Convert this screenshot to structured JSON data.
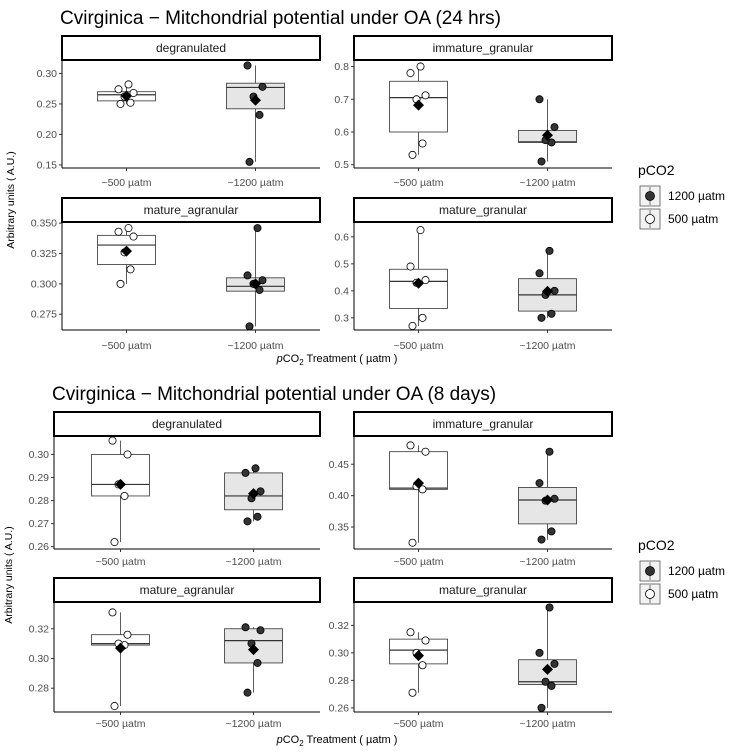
{
  "legend": {
    "title": "pCO2",
    "entries": [
      {
        "label": "1200 µatm",
        "fill": "#333333"
      },
      {
        "label": "500 µatm",
        "fill": "#ffffff"
      }
    ],
    "placement": "right"
  },
  "colors": {
    "box_fill_500": "#ffffff",
    "box_fill_1200": "#e6e6e6",
    "point_500": "#ffffff",
    "point_1200": "#333333",
    "mean_marker": "#000000",
    "strip_fill": "#ffffff"
  },
  "chart_data": [
    {
      "type": "box",
      "title": "Cvirginica − Mitchondrial potential under OA (24 hrs)",
      "ylabel": "Arbitrary units ( A.U.)",
      "xlabel_italic": "p",
      "xlabel_main": "CO",
      "xlabel_sub": "2",
      "xlabel_rest": " Treatment ( µatm )",
      "categories": [
        "~500 µatm",
        "~1200 µatm"
      ],
      "panels": [
        {
          "name": "degranulated",
          "ylim": [
            0.145,
            0.322
          ],
          "yticks": [
            0.15,
            0.2,
            0.25,
            0.3
          ],
          "ytick_labels": [
            "0.15",
            "0.20",
            "0.25",
            "0.30"
          ],
          "groups": [
            {
              "q1": 0.255,
              "median": 0.265,
              "q3": 0.27,
              "lo": 0.25,
              "hi": 0.282,
              "mean": 0.263,
              "points": [
                0.25,
                0.252,
                0.262,
                0.268,
                0.274,
                0.282
              ]
            },
            {
              "q1": 0.242,
              "median": 0.277,
              "q3": 0.284,
              "lo": 0.155,
              "hi": 0.313,
              "mean": 0.256,
              "points": [
                0.155,
                0.232,
                0.262,
                0.278,
                0.313
              ]
            }
          ]
        },
        {
          "name": "immature_granular",
          "ylim": [
            0.49,
            0.82
          ],
          "yticks": [
            0.5,
            0.6,
            0.7,
            0.8
          ],
          "ytick_labels": [
            "0.5",
            "0.6",
            "0.7",
            "0.8"
          ],
          "groups": [
            {
              "q1": 0.6,
              "median": 0.705,
              "q3": 0.755,
              "lo": 0.53,
              "hi": 0.8,
              "mean": 0.682,
              "points": [
                0.53,
                0.565,
                0.7,
                0.712,
                0.78,
                0.8
              ]
            },
            {
              "q1": 0.568,
              "median": 0.57,
              "q3": 0.605,
              "lo": 0.51,
              "hi": 0.7,
              "mean": 0.59,
              "points": [
                0.51,
                0.568,
                0.575,
                0.615,
                0.7
              ]
            }
          ]
        },
        {
          "name": "mature_agranular",
          "ylim": [
            0.262,
            0.351
          ],
          "yticks": [
            0.275,
            0.3,
            0.325,
            0.35
          ],
          "ytick_labels": [
            "0.275",
            "0.300",
            "0.325",
            "0.350"
          ],
          "groups": [
            {
              "q1": 0.316,
              "median": 0.332,
              "q3": 0.34,
              "lo": 0.3,
              "hi": 0.346,
              "mean": 0.327,
              "points": [
                0.3,
                0.312,
                0.326,
                0.339,
                0.343,
                0.346
              ]
            },
            {
              "q1": 0.294,
              "median": 0.298,
              "q3": 0.305,
              "lo": 0.265,
              "hi": 0.346,
              "mean": 0.3,
              "points": [
                0.265,
                0.295,
                0.3,
                0.303,
                0.307,
                0.346
              ]
            }
          ]
        },
        {
          "name": "mature_granular",
          "ylim": [
            0.255,
            0.655
          ],
          "yticks": [
            0.3,
            0.4,
            0.5,
            0.6
          ],
          "ytick_labels": [
            "0.3",
            "0.4",
            "0.5",
            "0.6"
          ],
          "groups": [
            {
              "q1": 0.335,
              "median": 0.435,
              "q3": 0.48,
              "lo": 0.27,
              "hi": 0.625,
              "mean": 0.428,
              "points": [
                0.27,
                0.3,
                0.43,
                0.44,
                0.49,
                0.625
              ]
            },
            {
              "q1": 0.325,
              "median": 0.385,
              "q3": 0.445,
              "lo": 0.3,
              "hi": 0.548,
              "mean": 0.398,
              "points": [
                0.3,
                0.315,
                0.385,
                0.4,
                0.465,
                0.548
              ]
            }
          ]
        }
      ]
    },
    {
      "type": "box",
      "title": "Cvirginica − Mitchondrial potential under OA (8 days)",
      "ylabel": "Arbitrary units ( A.U.)",
      "xlabel_italic": "p",
      "xlabel_main": "CO",
      "xlabel_sub": "2",
      "xlabel_rest": " Treatment ( µatm )",
      "categories": [
        "~500 µatm",
        "~1200 µatm"
      ],
      "panels": [
        {
          "name": "degranulated",
          "ylim": [
            0.259,
            0.308
          ],
          "yticks": [
            0.26,
            0.27,
            0.28,
            0.29,
            0.3
          ],
          "ytick_labels": [
            "0.26",
            "0.27",
            "0.28",
            "0.29",
            "0.30"
          ],
          "groups": [
            {
              "q1": 0.282,
              "median": 0.287,
              "q3": 0.3,
              "lo": 0.262,
              "hi": 0.306,
              "mean": 0.287,
              "points": [
                0.262,
                0.282,
                0.287,
                0.3,
                0.306
              ]
            },
            {
              "q1": 0.276,
              "median": 0.282,
              "q3": 0.292,
              "lo": 0.271,
              "hi": 0.294,
              "mean": 0.283,
              "points": [
                0.271,
                0.273,
                0.281,
                0.284,
                0.292,
                0.294
              ]
            }
          ]
        },
        {
          "name": "immature_granular",
          "ylim": [
            0.315,
            0.495
          ],
          "yticks": [
            0.35,
            0.4,
            0.45
          ],
          "ytick_labels": [
            "0.35",
            "0.40",
            "0.45"
          ],
          "groups": [
            {
              "q1": 0.41,
              "median": 0.412,
              "q3": 0.47,
              "lo": 0.325,
              "hi": 0.48,
              "mean": 0.42,
              "points": [
                0.325,
                0.41,
                0.415,
                0.47,
                0.48
              ]
            },
            {
              "q1": 0.355,
              "median": 0.393,
              "q3": 0.413,
              "lo": 0.33,
              "hi": 0.47,
              "mean": 0.393,
              "points": [
                0.33,
                0.343,
                0.392,
                0.395,
                0.42,
                0.47
              ]
            }
          ]
        },
        {
          "name": "mature_agranular",
          "ylim": [
            0.264,
            0.338
          ],
          "yticks": [
            0.28,
            0.3,
            0.32
          ],
          "ytick_labels": [
            "0.28",
            "0.30",
            "0.32"
          ],
          "groups": [
            {
              "q1": 0.309,
              "median": 0.31,
              "q3": 0.316,
              "lo": 0.268,
              "hi": 0.331,
              "mean": 0.307,
              "points": [
                0.268,
                0.309,
                0.31,
                0.316,
                0.331
              ]
            },
            {
              "q1": 0.297,
              "median": 0.312,
              "q3": 0.32,
              "lo": 0.277,
              "hi": 0.321,
              "mean": 0.306,
              "points": [
                0.277,
                0.297,
                0.31,
                0.319,
                0.321
              ]
            }
          ]
        },
        {
          "name": "mature_granular",
          "ylim": [
            0.257,
            0.337
          ],
          "yticks": [
            0.26,
            0.28,
            0.3,
            0.32
          ],
          "ytick_labels": [
            "0.26",
            "0.28",
            "0.30",
            "0.32"
          ],
          "groups": [
            {
              "q1": 0.292,
              "median": 0.302,
              "q3": 0.31,
              "lo": 0.271,
              "hi": 0.315,
              "mean": 0.298,
              "points": [
                0.271,
                0.291,
                0.3,
                0.309,
                0.315
              ]
            },
            {
              "q1": 0.277,
              "median": 0.279,
              "q3": 0.295,
              "lo": 0.26,
              "hi": 0.333,
              "mean": 0.288,
              "points": [
                0.26,
                0.276,
                0.279,
                0.292,
                0.3,
                0.333
              ]
            }
          ]
        }
      ]
    }
  ]
}
